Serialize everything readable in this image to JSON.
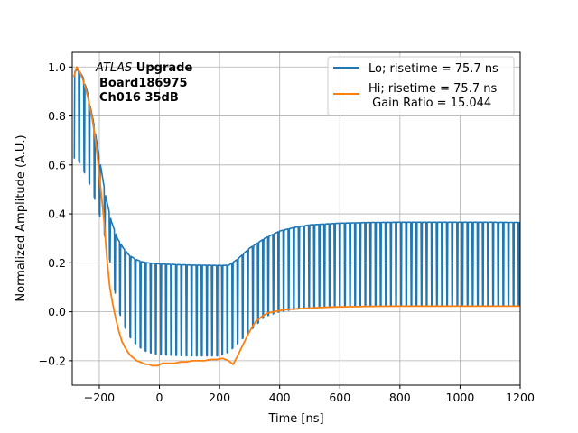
{
  "chart_data": {
    "type": "line",
    "title": "",
    "xlabel": "Time [ns]",
    "ylabel": "Normalized Amplitude (A.U.)",
    "xlim": [
      -290,
      1200
    ],
    "ylim": [
      -0.3,
      1.06
    ],
    "xticks": [
      -200,
      0,
      200,
      400,
      600,
      800,
      1000,
      1200
    ],
    "yticks": [
      -0.2,
      0.0,
      0.2,
      0.4,
      0.6,
      0.8,
      1.0
    ],
    "xtick_labels": [
      "−200",
      "0",
      "200",
      "400",
      "600",
      "800",
      "1000",
      "1200"
    ],
    "ytick_labels": [
      "−0.2",
      "0.0",
      "0.2",
      "0.4",
      "0.6",
      "0.8",
      "1.0"
    ],
    "grid": true,
    "legend_position": "upper-right",
    "annotation": {
      "experiment": "ATLAS",
      "experiment_suffix": " Upgrade",
      "board": "Board186975",
      "channel": "Ch016 35dB"
    },
    "series": [
      {
        "name": "Lo",
        "legend_label": "Lo; risetime = 75.7 ns",
        "color": "#1f77b4",
        "x": [
          -285,
          -270,
          -255,
          -240,
          -220,
          -200,
          -180,
          -160,
          -140,
          -120,
          -100,
          -80,
          -60,
          -40,
          -20,
          0,
          50,
          100,
          150,
          200,
          230,
          260,
          300,
          350,
          400,
          450,
          500,
          600,
          700,
          800,
          900,
          1000,
          1100,
          1200
        ],
        "y": [
          0.98,
          0.99,
          0.96,
          0.9,
          0.78,
          0.63,
          0.48,
          0.37,
          0.3,
          0.26,
          0.23,
          0.215,
          0.205,
          0.2,
          0.198,
          0.196,
          0.193,
          0.191,
          0.19,
          0.189,
          0.19,
          0.215,
          0.26,
          0.3,
          0.33,
          0.345,
          0.355,
          0.362,
          0.365,
          0.366,
          0.366,
          0.366,
          0.366,
          0.365
        ],
        "dip_upper": [
          0.97,
          0.96,
          0.93,
          0.85,
          0.74,
          0.6,
          0.45,
          0.34,
          0.27,
          0.23,
          0.21,
          0.2,
          0.195,
          0.193,
          0.191,
          0.19,
          0.19,
          0.19,
          0.19,
          0.19,
          0.19,
          0.21,
          0.25,
          0.29,
          0.32,
          0.34,
          0.35,
          0.36,
          0.365,
          0.366,
          0.366,
          0.366,
          0.366,
          0.365
        ],
        "dip_lower": [
          0.63,
          0.62,
          0.58,
          0.55,
          0.48,
          0.4,
          0.3,
          0.18,
          0.02,
          -0.05,
          -0.1,
          -0.13,
          -0.15,
          -0.165,
          -0.17,
          -0.175,
          -0.178,
          -0.18,
          -0.18,
          -0.18,
          -0.165,
          -0.13,
          -0.08,
          -0.02,
          0.0,
          0.01,
          0.02,
          0.025,
          0.025,
          0.025,
          0.025,
          0.025,
          0.025,
          0.025
        ]
      },
      {
        "name": "Hi",
        "legend_label": "Hi; risetime = 75.7 ns",
        "legend_label_2": " Gain Ratio = 15.044",
        "color": "#ff7f0e",
        "x": [
          -285,
          -275,
          -265,
          -255,
          -245,
          -235,
          -225,
          -215,
          -205,
          -195,
          -185,
          -175,
          -165,
          -155,
          -145,
          -135,
          -125,
          -115,
          -105,
          -95,
          -85,
          -75,
          -65,
          -55,
          -45,
          -35,
          -25,
          -15,
          -5,
          10,
          30,
          50,
          70,
          90,
          110,
          130,
          150,
          170,
          190,
          210,
          230,
          245,
          260,
          280,
          300,
          320,
          340,
          360,
          380,
          400,
          430,
          460,
          500,
          550,
          600,
          700,
          800,
          900,
          1000,
          1100,
          1200
        ],
        "y": [
          0.96,
          1.0,
          0.98,
          0.95,
          0.91,
          0.86,
          0.8,
          0.72,
          0.62,
          0.5,
          0.38,
          0.22,
          0.1,
          0.03,
          -0.03,
          -0.08,
          -0.12,
          -0.145,
          -0.165,
          -0.18,
          -0.19,
          -0.2,
          -0.205,
          -0.21,
          -0.215,
          -0.215,
          -0.22,
          -0.22,
          -0.22,
          -0.21,
          -0.21,
          -0.21,
          -0.205,
          -0.205,
          -0.2,
          -0.2,
          -0.2,
          -0.195,
          -0.195,
          -0.19,
          -0.2,
          -0.215,
          -0.18,
          -0.13,
          -0.08,
          -0.04,
          -0.02,
          -0.005,
          0.0,
          0.005,
          0.01,
          0.012,
          0.015,
          0.018,
          0.02,
          0.022,
          0.023,
          0.023,
          0.023,
          0.023,
          0.023
        ]
      }
    ]
  }
}
